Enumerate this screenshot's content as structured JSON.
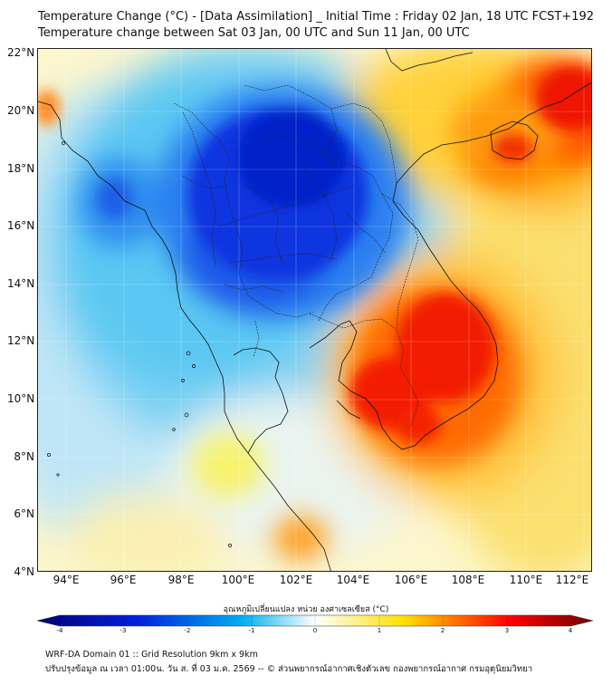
{
  "header": {
    "title_line1": "Temperature Change (°C) - [Data Assimilation] _ Initial Time : Friday 02 Jan, 18 UTC FCST+192",
    "title_line2": "Temperature change between Sat 03 Jan, 00 UTC and Sun 11 Jan, 00 UTC"
  },
  "map": {
    "lat_labels": [
      "22°N",
      "20°N",
      "18°N",
      "16°N",
      "14°N",
      "12°N",
      "10°N",
      "8°N",
      "6°N",
      "4°N"
    ],
    "lon_labels": [
      "94°E",
      "96°E",
      "98°E",
      "100°E",
      "102°E",
      "104°E",
      "106°E",
      "108°E",
      "110°E",
      "112°E"
    ]
  },
  "colorbar": {
    "title": "อุณหภูมิเปลี่ยนแปลง หน่วย องศาเซลเซียส (°C)",
    "ticks": [
      "-4",
      "-3",
      "-2",
      "-1",
      "0",
      "1",
      "2",
      "3",
      "4"
    ],
    "colors": {
      "strong_cold": "#000070",
      "cold": "#0022dd",
      "cool": "#00b0f0",
      "neutral": "#ffffff",
      "warm": "#ffe000",
      "hot": "#ff0000",
      "extreme": "#700000"
    }
  },
  "footer": {
    "line1": "WRF-DA Domain 01 :: Grid Resolution 9km x 9km",
    "line2": "ปรับปรุงข้อมูล ณ เวลา 01:00น. วัน ส. ที่ 03 ม.ค. 2569 -- © ส่วนพยากรณ์อากาศเชิงตัวเลข กองพยากรณ์อากาศ กรมอุตุนิยมวิทยา"
  }
}
